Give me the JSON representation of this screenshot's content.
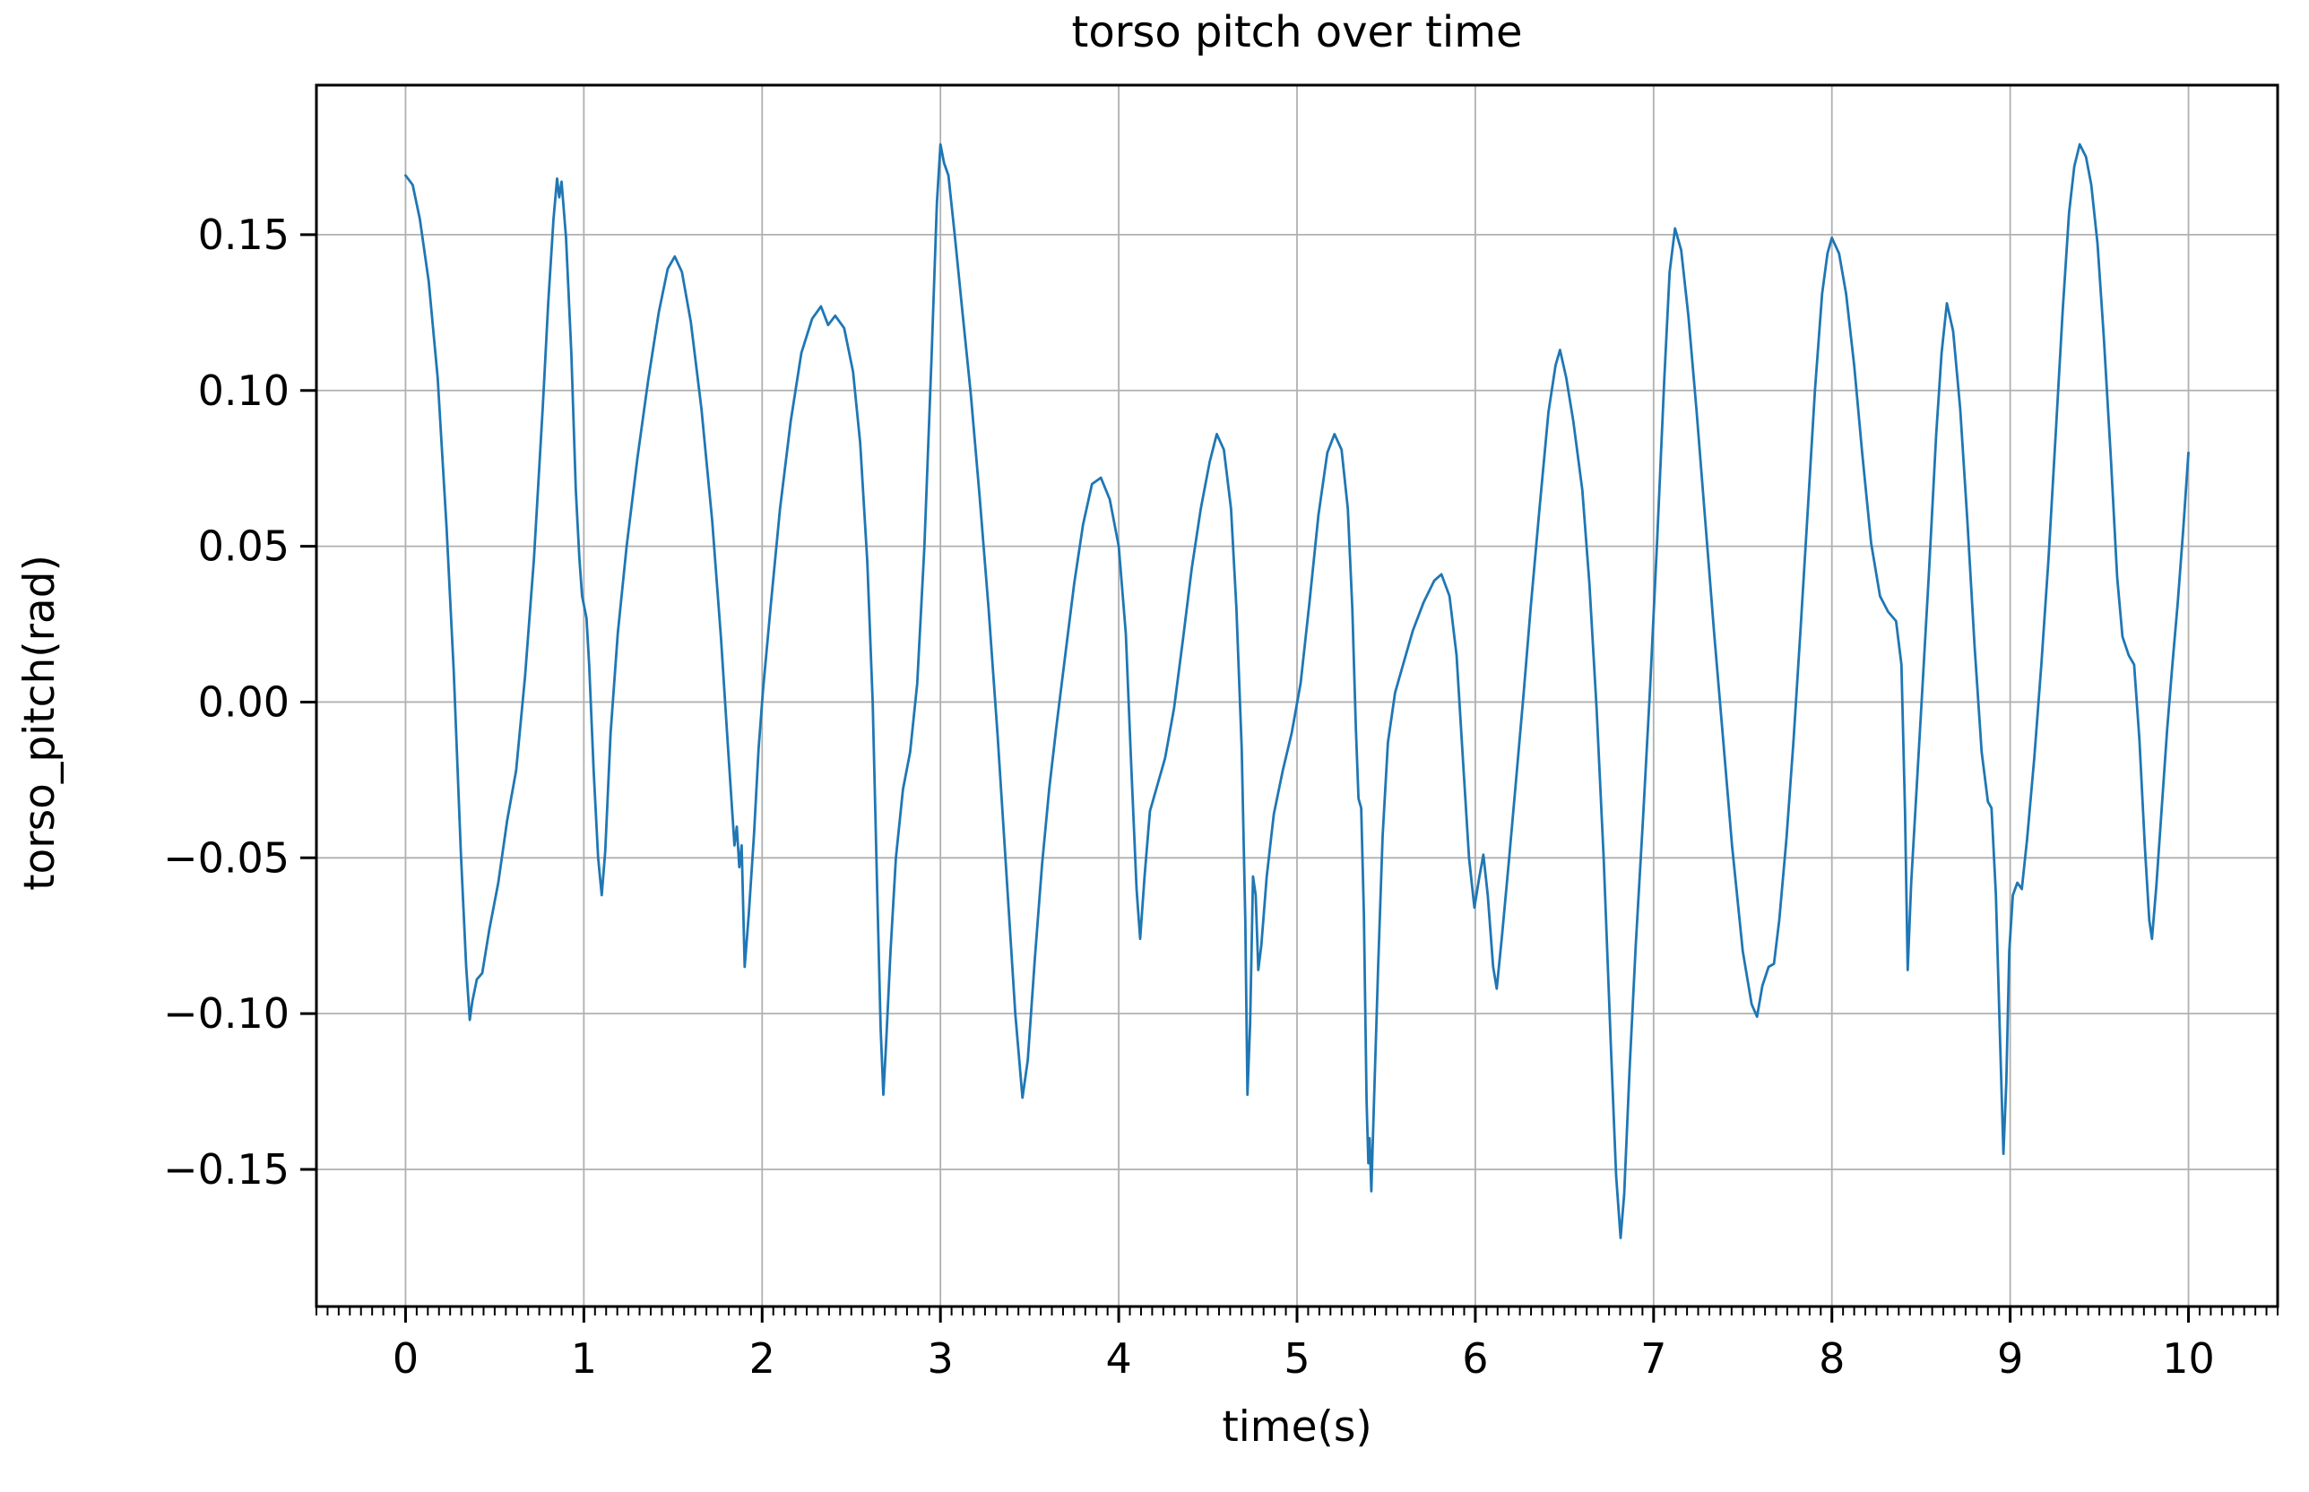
{
  "chart_data": {
    "type": "line",
    "title": "torso pitch over time",
    "xlabel": "time(s)",
    "ylabel": "torso_pitch(rad)",
    "xlim": [
      -0.5,
      10.5
    ],
    "ylim": [
      -0.194,
      0.198
    ],
    "grid": true,
    "grid_color": "#b0b0b0",
    "line_color": "#1f77b4",
    "spine_color": "#000000",
    "xticks": [
      0,
      1,
      2,
      3,
      4,
      5,
      6,
      7,
      8,
      9,
      10
    ],
    "xticklabels": [
      "0",
      "1",
      "2",
      "3",
      "4",
      "5",
      "6",
      "7",
      "8",
      "9",
      "10"
    ],
    "yticks": [
      -0.15,
      -0.1,
      -0.05,
      0.0,
      0.05,
      0.1,
      0.15
    ],
    "yticklabels": [
      "−0.15",
      "−0.10",
      "−0.05",
      "0.00",
      "0.05",
      "0.10",
      "0.15"
    ],
    "x_minor_tick_step": 0.0625,
    "legend": "none",
    "series": [
      {
        "name": "torso_pitch",
        "points": [
          [
            0.0,
            0.169
          ],
          [
            0.04,
            0.166
          ],
          [
            0.08,
            0.155
          ],
          [
            0.13,
            0.135
          ],
          [
            0.18,
            0.104
          ],
          [
            0.23,
            0.056
          ],
          [
            0.27,
            0.01
          ],
          [
            0.31,
            -0.048
          ],
          [
            0.34,
            -0.085
          ],
          [
            0.36,
            -0.102
          ],
          [
            0.375,
            -0.096
          ],
          [
            0.4,
            -0.089
          ],
          [
            0.43,
            -0.087
          ],
          [
            0.47,
            -0.073
          ],
          [
            0.52,
            -0.058
          ],
          [
            0.57,
            -0.038
          ],
          [
            0.62,
            -0.022
          ],
          [
            0.67,
            0.008
          ],
          [
            0.72,
            0.046
          ],
          [
            0.77,
            0.095
          ],
          [
            0.8,
            0.128
          ],
          [
            0.83,
            0.155
          ],
          [
            0.85,
            0.168
          ],
          [
            0.862,
            0.162
          ],
          [
            0.875,
            0.167
          ],
          [
            0.9,
            0.149
          ],
          [
            0.93,
            0.112
          ],
          [
            0.955,
            0.068
          ],
          [
            0.975,
            0.046
          ],
          [
            0.99,
            0.034
          ],
          [
            1.015,
            0.027
          ],
          [
            1.03,
            0.012
          ],
          [
            1.055,
            -0.022
          ],
          [
            1.08,
            -0.05
          ],
          [
            1.1,
            -0.062
          ],
          [
            1.12,
            -0.048
          ],
          [
            1.15,
            -0.01
          ],
          [
            1.19,
            0.022
          ],
          [
            1.24,
            0.05
          ],
          [
            1.3,
            0.078
          ],
          [
            1.36,
            0.103
          ],
          [
            1.42,
            0.125
          ],
          [
            1.47,
            0.139
          ],
          [
            1.51,
            0.143
          ],
          [
            1.55,
            0.138
          ],
          [
            1.6,
            0.122
          ],
          [
            1.66,
            0.094
          ],
          [
            1.72,
            0.058
          ],
          [
            1.77,
            0.02
          ],
          [
            1.81,
            -0.016
          ],
          [
            1.845,
            -0.046
          ],
          [
            1.858,
            -0.04
          ],
          [
            1.872,
            -0.053
          ],
          [
            1.885,
            -0.046
          ],
          [
            1.902,
            -0.085
          ],
          [
            1.925,
            -0.068
          ],
          [
            1.955,
            -0.042
          ],
          [
            1.98,
            -0.015
          ],
          [
            2.005,
            0.004
          ],
          [
            2.05,
            0.032
          ],
          [
            2.1,
            0.062
          ],
          [
            2.16,
            0.09
          ],
          [
            2.22,
            0.112
          ],
          [
            2.28,
            0.123
          ],
          [
            2.33,
            0.127
          ],
          [
            2.37,
            0.121
          ],
          [
            2.41,
            0.124
          ],
          [
            2.46,
            0.12
          ],
          [
            2.51,
            0.106
          ],
          [
            2.55,
            0.083
          ],
          [
            2.59,
            0.045
          ],
          [
            2.62,
            0.0
          ],
          [
            2.645,
            -0.06
          ],
          [
            2.665,
            -0.105
          ],
          [
            2.68,
            -0.126
          ],
          [
            2.695,
            -0.11
          ],
          [
            2.72,
            -0.08
          ],
          [
            2.75,
            -0.05
          ],
          [
            2.79,
            -0.028
          ],
          [
            2.83,
            -0.016
          ],
          [
            2.87,
            0.006
          ],
          [
            2.91,
            0.05
          ],
          [
            2.95,
            0.11
          ],
          [
            2.98,
            0.16
          ],
          [
            3.0,
            0.179
          ],
          [
            3.02,
            0.173
          ],
          [
            3.045,
            0.169
          ],
          [
            3.08,
            0.15
          ],
          [
            3.12,
            0.127
          ],
          [
            3.17,
            0.099
          ],
          [
            3.22,
            0.066
          ],
          [
            3.27,
            0.03
          ],
          [
            3.32,
            -0.01
          ],
          [
            3.37,
            -0.055
          ],
          [
            3.42,
            -0.1
          ],
          [
            3.46,
            -0.127
          ],
          [
            3.49,
            -0.115
          ],
          [
            3.53,
            -0.082
          ],
          [
            3.57,
            -0.052
          ],
          [
            3.61,
            -0.028
          ],
          [
            3.65,
            -0.008
          ],
          [
            3.7,
            0.015
          ],
          [
            3.75,
            0.038
          ],
          [
            3.8,
            0.057
          ],
          [
            3.85,
            0.07
          ],
          [
            3.9,
            0.072
          ],
          [
            3.95,
            0.065
          ],
          [
            4.0,
            0.05
          ],
          [
            4.04,
            0.022
          ],
          [
            4.07,
            -0.02
          ],
          [
            4.1,
            -0.06
          ],
          [
            4.12,
            -0.076
          ],
          [
            4.145,
            -0.056
          ],
          [
            4.175,
            -0.035
          ],
          [
            4.21,
            -0.028
          ],
          [
            4.26,
            -0.018
          ],
          [
            4.31,
            -0.002
          ],
          [
            4.36,
            0.02
          ],
          [
            4.41,
            0.043
          ],
          [
            4.46,
            0.062
          ],
          [
            4.51,
            0.077
          ],
          [
            4.55,
            0.086
          ],
          [
            4.59,
            0.081
          ],
          [
            4.63,
            0.062
          ],
          [
            4.66,
            0.03
          ],
          [
            4.69,
            -0.015
          ],
          [
            4.71,
            -0.07
          ],
          [
            4.722,
            -0.126
          ],
          [
            4.737,
            -0.103
          ],
          [
            4.753,
            -0.056
          ],
          [
            4.768,
            -0.062
          ],
          [
            4.783,
            -0.086
          ],
          [
            4.8,
            -0.078
          ],
          [
            4.83,
            -0.056
          ],
          [
            4.87,
            -0.036
          ],
          [
            4.92,
            -0.022
          ],
          [
            4.97,
            -0.01
          ],
          [
            5.02,
            0.006
          ],
          [
            5.07,
            0.032
          ],
          [
            5.12,
            0.06
          ],
          [
            5.17,
            0.08
          ],
          [
            5.21,
            0.086
          ],
          [
            5.25,
            0.081
          ],
          [
            5.285,
            0.062
          ],
          [
            5.31,
            0.03
          ],
          [
            5.33,
            -0.008
          ],
          [
            5.345,
            -0.031
          ],
          [
            5.36,
            -0.034
          ],
          [
            5.375,
            -0.068
          ],
          [
            5.39,
            -0.128
          ],
          [
            5.4,
            -0.148
          ],
          [
            5.407,
            -0.14
          ],
          [
            5.417,
            -0.157
          ],
          [
            5.432,
            -0.128
          ],
          [
            5.455,
            -0.085
          ],
          [
            5.48,
            -0.043
          ],
          [
            5.51,
            -0.013
          ],
          [
            5.55,
            0.003
          ],
          [
            5.6,
            0.013
          ],
          [
            5.65,
            0.023
          ],
          [
            5.71,
            0.032
          ],
          [
            5.77,
            0.039
          ],
          [
            5.81,
            0.041
          ],
          [
            5.855,
            0.034
          ],
          [
            5.895,
            0.015
          ],
          [
            5.93,
            -0.018
          ],
          [
            5.965,
            -0.05
          ],
          [
            5.995,
            -0.066
          ],
          [
            6.02,
            -0.057
          ],
          [
            6.045,
            -0.049
          ],
          [
            6.07,
            -0.062
          ],
          [
            6.1,
            -0.085
          ],
          [
            6.12,
            -0.092
          ],
          [
            6.15,
            -0.075
          ],
          [
            6.19,
            -0.05
          ],
          [
            6.23,
            -0.024
          ],
          [
            6.27,
            0.002
          ],
          [
            6.31,
            0.03
          ],
          [
            6.36,
            0.062
          ],
          [
            6.41,
            0.093
          ],
          [
            6.45,
            0.108
          ],
          [
            6.475,
            0.113
          ],
          [
            6.51,
            0.104
          ],
          [
            6.55,
            0.09
          ],
          [
            6.6,
            0.068
          ],
          [
            6.64,
            0.038
          ],
          [
            6.68,
            -0.002
          ],
          [
            6.72,
            -0.05
          ],
          [
            6.76,
            -0.11
          ],
          [
            6.79,
            -0.152
          ],
          [
            6.815,
            -0.172
          ],
          [
            6.835,
            -0.158
          ],
          [
            6.865,
            -0.118
          ],
          [
            6.9,
            -0.078
          ],
          [
            6.94,
            -0.038
          ],
          [
            6.98,
            0.004
          ],
          [
            7.02,
            0.052
          ],
          [
            7.06,
            0.104
          ],
          [
            7.09,
            0.138
          ],
          [
            7.12,
            0.152
          ],
          [
            7.155,
            0.145
          ],
          [
            7.195,
            0.124
          ],
          [
            7.24,
            0.094
          ],
          [
            7.29,
            0.058
          ],
          [
            7.34,
            0.022
          ],
          [
            7.39,
            -0.012
          ],
          [
            7.44,
            -0.046
          ],
          [
            7.5,
            -0.08
          ],
          [
            7.55,
            -0.097
          ],
          [
            7.58,
            -0.101
          ],
          [
            7.61,
            -0.091
          ],
          [
            7.645,
            -0.085
          ],
          [
            7.675,
            -0.084
          ],
          [
            7.705,
            -0.07
          ],
          [
            7.745,
            -0.044
          ],
          [
            7.785,
            -0.012
          ],
          [
            7.825,
            0.024
          ],
          [
            7.865,
            0.062
          ],
          [
            7.905,
            0.1
          ],
          [
            7.945,
            0.131
          ],
          [
            7.975,
            0.144
          ],
          [
            8.0,
            0.149
          ],
          [
            8.04,
            0.144
          ],
          [
            8.08,
            0.131
          ],
          [
            8.125,
            0.108
          ],
          [
            8.17,
            0.08
          ],
          [
            8.22,
            0.051
          ],
          [
            8.27,
            0.034
          ],
          [
            8.315,
            0.029
          ],
          [
            8.36,
            0.026
          ],
          [
            8.39,
            0.012
          ],
          [
            8.41,
            -0.035
          ],
          [
            8.425,
            -0.086
          ],
          [
            8.445,
            -0.058
          ],
          [
            8.475,
            -0.028
          ],
          [
            8.505,
            0.002
          ],
          [
            8.545,
            0.042
          ],
          [
            8.585,
            0.086
          ],
          [
            8.615,
            0.112
          ],
          [
            8.645,
            0.128
          ],
          [
            8.68,
            0.119
          ],
          [
            8.72,
            0.094
          ],
          [
            8.76,
            0.058
          ],
          [
            8.8,
            0.018
          ],
          [
            8.84,
            -0.016
          ],
          [
            8.875,
            -0.032
          ],
          [
            8.895,
            -0.034
          ],
          [
            8.92,
            -0.062
          ],
          [
            8.945,
            -0.112
          ],
          [
            8.962,
            -0.145
          ],
          [
            8.978,
            -0.122
          ],
          [
            8.995,
            -0.08
          ],
          [
            9.015,
            -0.062
          ],
          [
            9.04,
            -0.058
          ],
          [
            9.065,
            -0.06
          ],
          [
            9.095,
            -0.044
          ],
          [
            9.135,
            -0.018
          ],
          [
            9.175,
            0.012
          ],
          [
            9.215,
            0.046
          ],
          [
            9.255,
            0.086
          ],
          [
            9.295,
            0.126
          ],
          [
            9.33,
            0.157
          ],
          [
            9.36,
            0.172
          ],
          [
            9.39,
            0.179
          ],
          [
            9.425,
            0.175
          ],
          [
            9.455,
            0.166
          ],
          [
            9.49,
            0.147
          ],
          [
            9.525,
            0.117
          ],
          [
            9.565,
            0.078
          ],
          [
            9.6,
            0.04
          ],
          [
            9.63,
            0.021
          ],
          [
            9.665,
            0.015
          ],
          [
            9.695,
            0.012
          ],
          [
            9.725,
            -0.012
          ],
          [
            9.755,
            -0.046
          ],
          [
            9.78,
            -0.07
          ],
          [
            9.795,
            -0.076
          ],
          [
            9.82,
            -0.059
          ],
          [
            9.85,
            -0.034
          ],
          [
            9.88,
            -0.009
          ],
          [
            9.91,
            0.012
          ],
          [
            9.94,
            0.032
          ],
          [
            9.97,
            0.055
          ],
          [
            10.0,
            0.08
          ]
        ]
      }
    ]
  }
}
